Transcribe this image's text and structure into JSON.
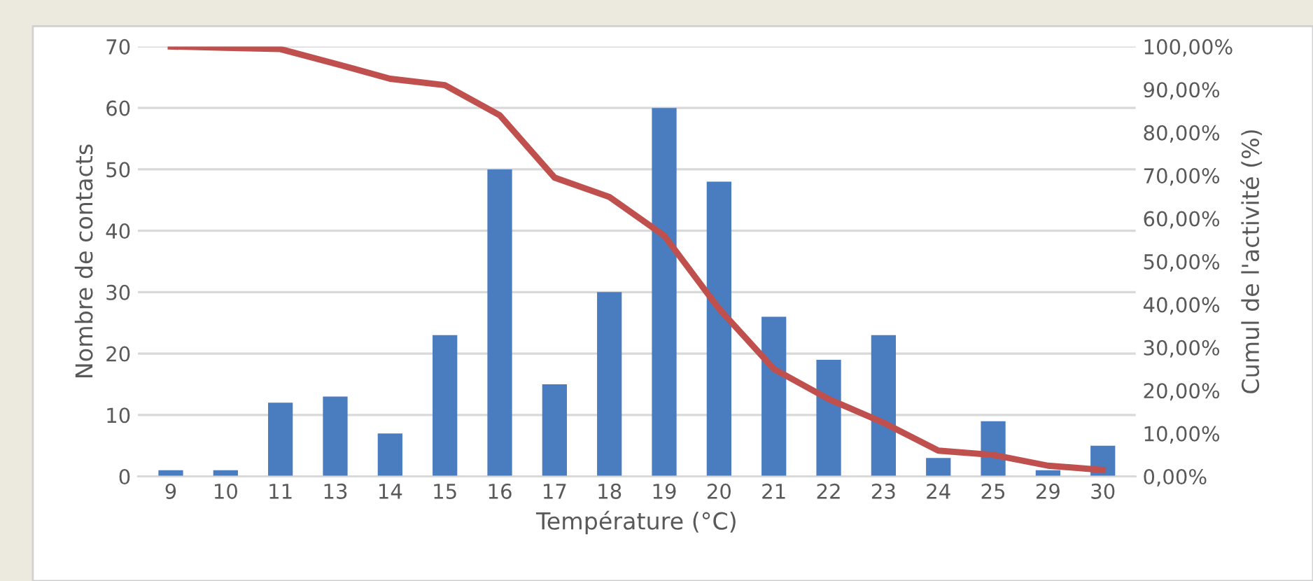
{
  "chart_data": {
    "type": "bar",
    "xlabel": "Température (°C)",
    "ylabel": "Nombre de contacts",
    "y2label": "Cumul de l'activité (%)",
    "categories": [
      "9",
      "10",
      "11",
      "13",
      "14",
      "15",
      "16",
      "17",
      "18",
      "19",
      "20",
      "21",
      "22",
      "23",
      "24",
      "25",
      "29",
      "30"
    ],
    "series": [
      {
        "color": "#4a7dc0",
        "values": [
          1,
          1,
          12,
          13,
          7,
          23,
          50,
          15,
          30,
          60,
          48,
          26,
          19,
          23,
          3,
          9,
          1,
          5
        ]
      },
      {
        "type": "line",
        "axis": "y2",
        "color": "#c0504d",
        "values": [
          100,
          99.7,
          99.4,
          96,
          92.5,
          91,
          84,
          69.5,
          65,
          56,
          39,
          25,
          18,
          12.5,
          6,
          5,
          2.5,
          1.5
        ]
      }
    ],
    "ylim": [
      0,
      70
    ],
    "yticks": [
      0,
      10,
      20,
      30,
      40,
      50,
      60,
      70
    ],
    "y2lim": [
      0,
      100
    ],
    "y2ticks": [
      {
        "value": 0,
        "label": "0,00%"
      },
      {
        "value": 10,
        "label": "10,00%"
      },
      {
        "value": 20,
        "label": "20,00%"
      },
      {
        "value": 30,
        "label": "30,00%"
      },
      {
        "value": 40,
        "label": "40,00%"
      },
      {
        "value": 50,
        "label": "50,00%"
      },
      {
        "value": 60,
        "label": "60,00%"
      },
      {
        "value": 70,
        "label": "70,00%"
      },
      {
        "value": 80,
        "label": "80,00%"
      },
      {
        "value": 90,
        "label": "90,00%"
      },
      {
        "value": 100,
        "label": "100,00%"
      }
    ],
    "grid": "y",
    "legend": false
  }
}
